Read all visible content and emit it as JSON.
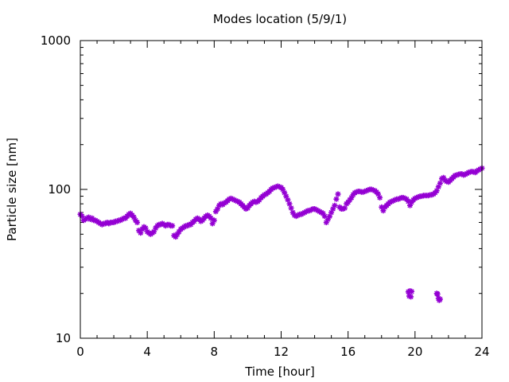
{
  "chart_data": {
    "type": "scatter",
    "title": "Modes location (5/9/1)",
    "xlabel": "Time [hour]",
    "ylabel": "Particle size [nm]",
    "xlim": [
      0,
      24
    ],
    "ylim": [
      10,
      1000
    ],
    "yscale": "log",
    "grid": false,
    "legend": "none",
    "marker": "star",
    "color": "#9400d3",
    "x_ticks": [
      0,
      4,
      8,
      12,
      16,
      20,
      24
    ],
    "x_tick_labels": [
      "0",
      "4",
      "8",
      "12",
      "16",
      "20",
      "24"
    ],
    "y_ticks": [
      10,
      100,
      1000
    ],
    "y_tick_labels": [
      "10",
      "100",
      "1000"
    ],
    "series": [
      {
        "points": [
          [
            0.0,
            68
          ],
          [
            0.1,
            66
          ],
          [
            0.2,
            62
          ],
          [
            0.3,
            63
          ],
          [
            0.4,
            64
          ],
          [
            0.5,
            65
          ],
          [
            0.6,
            63
          ],
          [
            0.7,
            64
          ],
          [
            0.8,
            62
          ],
          [
            0.9,
            62
          ],
          [
            1.0,
            61
          ],
          [
            1.1,
            60
          ],
          [
            1.2,
            59
          ],
          [
            1.3,
            58
          ],
          [
            1.4,
            59
          ],
          [
            1.5,
            59
          ],
          [
            1.6,
            60
          ],
          [
            1.7,
            59
          ],
          [
            1.8,
            60
          ],
          [
            1.9,
            60
          ],
          [
            2.0,
            60
          ],
          [
            2.1,
            61
          ],
          [
            2.2,
            61
          ],
          [
            2.3,
            62
          ],
          [
            2.4,
            62
          ],
          [
            2.5,
            63
          ],
          [
            2.6,
            64
          ],
          [
            2.7,
            64
          ],
          [
            2.8,
            66
          ],
          [
            2.9,
            68
          ],
          [
            3.0,
            69
          ],
          [
            3.1,
            67
          ],
          [
            3.2,
            65
          ],
          [
            3.3,
            62
          ],
          [
            3.4,
            60
          ],
          [
            3.5,
            53
          ],
          [
            3.6,
            51
          ],
          [
            3.7,
            54
          ],
          [
            3.8,
            56
          ],
          [
            3.9,
            55
          ],
          [
            4.0,
            52
          ],
          [
            4.1,
            51
          ],
          [
            4.2,
            50
          ],
          [
            4.3,
            51
          ],
          [
            4.4,
            52
          ],
          [
            4.5,
            55
          ],
          [
            4.6,
            57
          ],
          [
            4.7,
            58
          ],
          [
            4.8,
            58
          ],
          [
            4.9,
            59
          ],
          [
            5.0,
            58
          ],
          [
            5.1,
            57
          ],
          [
            5.2,
            58
          ],
          [
            5.3,
            58
          ],
          [
            5.4,
            57
          ],
          [
            5.5,
            57
          ],
          [
            5.6,
            49
          ],
          [
            5.7,
            48
          ],
          [
            5.8,
            50
          ],
          [
            5.9,
            52
          ],
          [
            6.0,
            54
          ],
          [
            6.1,
            55
          ],
          [
            6.2,
            56
          ],
          [
            6.3,
            57
          ],
          [
            6.4,
            57
          ],
          [
            6.5,
            58
          ],
          [
            6.6,
            58
          ],
          [
            6.7,
            60
          ],
          [
            6.8,
            61
          ],
          [
            6.9,
            63
          ],
          [
            7.0,
            64
          ],
          [
            7.1,
            63
          ],
          [
            7.2,
            61
          ],
          [
            7.3,
            62
          ],
          [
            7.4,
            64
          ],
          [
            7.5,
            66
          ],
          [
            7.6,
            67
          ],
          [
            7.7,
            66
          ],
          [
            7.8,
            64
          ],
          [
            7.9,
            59
          ],
          [
            8.0,
            62
          ],
          [
            8.1,
            71
          ],
          [
            8.2,
            74
          ],
          [
            8.3,
            78
          ],
          [
            8.4,
            80
          ],
          [
            8.5,
            79
          ],
          [
            8.6,
            81
          ],
          [
            8.7,
            82
          ],
          [
            8.8,
            84
          ],
          [
            8.9,
            86
          ],
          [
            9.0,
            87
          ],
          [
            9.1,
            86
          ],
          [
            9.2,
            85
          ],
          [
            9.3,
            84
          ],
          [
            9.4,
            83
          ],
          [
            9.5,
            82
          ],
          [
            9.6,
            80
          ],
          [
            9.7,
            78
          ],
          [
            9.8,
            76
          ],
          [
            9.9,
            74
          ],
          [
            10.0,
            75
          ],
          [
            10.1,
            78
          ],
          [
            10.2,
            80
          ],
          [
            10.3,
            82
          ],
          [
            10.4,
            83
          ],
          [
            10.5,
            82
          ],
          [
            10.6,
            83
          ],
          [
            10.7,
            85
          ],
          [
            10.8,
            88
          ],
          [
            10.9,
            90
          ],
          [
            11.0,
            92
          ],
          [
            11.1,
            93
          ],
          [
            11.2,
            95
          ],
          [
            11.3,
            97
          ],
          [
            11.4,
            100
          ],
          [
            11.5,
            102
          ],
          [
            11.6,
            103
          ],
          [
            11.7,
            104
          ],
          [
            11.8,
            105
          ],
          [
            11.9,
            104
          ],
          [
            12.0,
            103
          ],
          [
            12.1,
            100
          ],
          [
            12.2,
            95
          ],
          [
            12.3,
            90
          ],
          [
            12.4,
            85
          ],
          [
            12.5,
            80
          ],
          [
            12.6,
            75
          ],
          [
            12.7,
            70
          ],
          [
            12.8,
            67
          ],
          [
            12.9,
            66
          ],
          [
            13.0,
            67
          ],
          [
            13.1,
            68
          ],
          [
            13.2,
            68
          ],
          [
            13.3,
            69
          ],
          [
            13.4,
            70
          ],
          [
            13.5,
            71
          ],
          [
            13.6,
            72
          ],
          [
            13.7,
            72
          ],
          [
            13.8,
            73
          ],
          [
            13.9,
            74
          ],
          [
            14.0,
            74
          ],
          [
            14.1,
            73
          ],
          [
            14.2,
            72
          ],
          [
            14.3,
            71
          ],
          [
            14.4,
            70
          ],
          [
            14.5,
            69
          ],
          [
            14.6,
            66
          ],
          [
            14.7,
            60
          ],
          [
            14.8,
            63
          ],
          [
            14.9,
            66
          ],
          [
            15.0,
            70
          ],
          [
            15.1,
            74
          ],
          [
            15.2,
            78
          ],
          [
            15.3,
            86
          ],
          [
            15.4,
            93
          ],
          [
            15.5,
            76
          ],
          [
            15.6,
            74
          ],
          [
            15.7,
            74
          ],
          [
            15.8,
            75
          ],
          [
            15.9,
            80
          ],
          [
            16.0,
            82
          ],
          [
            16.1,
            85
          ],
          [
            16.2,
            88
          ],
          [
            16.3,
            92
          ],
          [
            16.4,
            95
          ],
          [
            16.5,
            96
          ],
          [
            16.6,
            97
          ],
          [
            16.7,
            97
          ],
          [
            16.8,
            96
          ],
          [
            16.9,
            96
          ],
          [
            17.0,
            97
          ],
          [
            17.1,
            98
          ],
          [
            17.2,
            99
          ],
          [
            17.3,
            100
          ],
          [
            17.4,
            100
          ],
          [
            17.5,
            99
          ],
          [
            17.6,
            98
          ],
          [
            17.7,
            96
          ],
          [
            17.8,
            93
          ],
          [
            17.9,
            88
          ],
          [
            18.0,
            76
          ],
          [
            18.1,
            72
          ],
          [
            18.2,
            76
          ],
          [
            18.3,
            78
          ],
          [
            18.4,
            80
          ],
          [
            18.5,
            82
          ],
          [
            18.6,
            83
          ],
          [
            18.7,
            84
          ],
          [
            18.8,
            85
          ],
          [
            18.9,
            86
          ],
          [
            19.0,
            86
          ],
          [
            19.1,
            87
          ],
          [
            19.2,
            88
          ],
          [
            19.3,
            88
          ],
          [
            19.4,
            87
          ],
          [
            19.5,
            86
          ],
          [
            19.6,
            83
          ],
          [
            19.7,
            78
          ],
          [
            19.8,
            82
          ],
          [
            19.9,
            85
          ],
          [
            20.0,
            87
          ],
          [
            20.1,
            88
          ],
          [
            20.2,
            89
          ],
          [
            20.3,
            90
          ],
          [
            20.4,
            90
          ],
          [
            20.5,
            91
          ],
          [
            20.6,
            91
          ],
          [
            20.7,
            91
          ],
          [
            20.8,
            91
          ],
          [
            20.9,
            92
          ],
          [
            21.0,
            92
          ],
          [
            21.1,
            93
          ],
          [
            21.2,
            95
          ],
          [
            21.3,
            98
          ],
          [
            21.4,
            104
          ],
          [
            21.5,
            110
          ],
          [
            21.6,
            118
          ],
          [
            21.7,
            120
          ],
          [
            21.8,
            115
          ],
          [
            21.9,
            113
          ],
          [
            22.0,
            112
          ],
          [
            22.1,
            115
          ],
          [
            22.2,
            118
          ],
          [
            22.3,
            121
          ],
          [
            22.4,
            124
          ],
          [
            22.5,
            125
          ],
          [
            22.6,
            126
          ],
          [
            22.7,
            127
          ],
          [
            22.8,
            127
          ],
          [
            22.9,
            125
          ],
          [
            23.0,
            126
          ],
          [
            23.1,
            128
          ],
          [
            23.2,
            130
          ],
          [
            23.3,
            131
          ],
          [
            23.4,
            132
          ],
          [
            23.5,
            131
          ],
          [
            23.6,
            130
          ],
          [
            23.7,
            133
          ],
          [
            23.8,
            135
          ],
          [
            23.9,
            137
          ],
          [
            24.0,
            139
          ],
          [
            19.6,
            20.5
          ],
          [
            19.7,
            20.8
          ],
          [
            19.8,
            20.6
          ],
          [
            19.65,
            19.2
          ],
          [
            19.75,
            19.0
          ],
          [
            21.3,
            20.0
          ],
          [
            21.35,
            19.8
          ],
          [
            21.4,
            18.5
          ],
          [
            21.45,
            18.0
          ],
          [
            21.5,
            18.3
          ]
        ]
      }
    ]
  }
}
